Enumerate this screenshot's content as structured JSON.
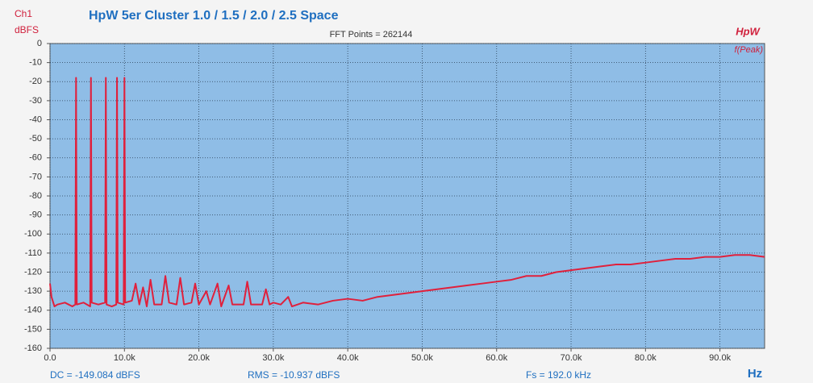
{
  "chart_data": {
    "type": "line",
    "title": "HpW 5er Cluster 1.0 / 1.5 / 2.0 / 2.5 Space",
    "subtitle": "FFT Points = 262144",
    "channel_label": "Ch1",
    "y_label": "dBFS",
    "x_label": "Hz",
    "brand": "HpW",
    "peak_label": "f(Peak)",
    "footer": [
      "DC = -149.084 dBFS",
      "RMS = -10.937 dBFS",
      "Fs = 192.0 kHz"
    ],
    "color": "#e0203c",
    "grid": true,
    "xlim": [
      0,
      96000
    ],
    "ylim": [
      -160,
      0
    ],
    "xticks": [
      {
        "value": 0,
        "label": "0.0"
      },
      {
        "value": 10000,
        "label": "10.0k"
      },
      {
        "value": 20000,
        "label": "20.0k"
      },
      {
        "value": 30000,
        "label": "30.0k"
      },
      {
        "value": 40000,
        "label": "40.0k"
      },
      {
        "value": 50000,
        "label": "50.0k"
      },
      {
        "value": 60000,
        "label": "60.0k"
      },
      {
        "value": 70000,
        "label": "70.0k"
      },
      {
        "value": 80000,
        "label": "80.0k"
      },
      {
        "value": 90000,
        "label": "90.0k"
      }
    ],
    "yticks": [
      0,
      -10,
      -20,
      -30,
      -40,
      -50,
      -60,
      -70,
      -80,
      -90,
      -100,
      -110,
      -120,
      -130,
      -140,
      -150,
      -160
    ],
    "x": [
      0,
      200,
      600,
      1000,
      2000,
      3000,
      3400,
      3500,
      3600,
      4500,
      5400,
      5500,
      5600,
      6500,
      7400,
      7500,
      7600,
      8300,
      8900,
      9000,
      9100,
      9900,
      10000,
      10100,
      11000,
      11500,
      12000,
      12500,
      13000,
      13500,
      14000,
      15000,
      15500,
      16000,
      17000,
      17500,
      18000,
      19000,
      19500,
      20000,
      21000,
      21500,
      22500,
      23000,
      24000,
      24500,
      26000,
      26500,
      27000,
      28500,
      29000,
      29500,
      30000,
      31000,
      32000,
      32500,
      34000,
      36000,
      38000,
      40000,
      42000,
      44000,
      46000,
      48000,
      50000,
      52000,
      54000,
      56000,
      58000,
      60000,
      62000,
      64000,
      66000,
      68000,
      70000,
      72000,
      74000,
      76000,
      78000,
      80000,
      82000,
      84000,
      86000,
      88000,
      90000,
      92000,
      94000,
      96000
    ],
    "values": [
      -126,
      -133,
      -138,
      -137,
      -136,
      -138,
      -137,
      -18,
      -137,
      -136,
      -138,
      -18,
      -136,
      -137,
      -136,
      -18,
      -137,
      -138,
      -137,
      -18,
      -136,
      -137,
      -18,
      -136,
      -135,
      -126,
      -137,
      -128,
      -138,
      -124,
      -137,
      -137,
      -122,
      -136,
      -137,
      -123,
      -137,
      -136,
      -126,
      -137,
      -130,
      -137,
      -126,
      -138,
      -127,
      -137,
      -137,
      -125,
      -137,
      -137,
      -129,
      -137,
      -136,
      -137,
      -133,
      -138,
      -136,
      -137,
      -135,
      -134,
      -135,
      -133,
      -132,
      -131,
      -130,
      -129,
      -128,
      -127,
      -126,
      -125,
      -124,
      -122,
      -122,
      -120,
      -119,
      -118,
      -117,
      -116,
      -116,
      -115,
      -114,
      -113,
      -113,
      -112,
      -112,
      -111,
      -111,
      -112
    ]
  }
}
